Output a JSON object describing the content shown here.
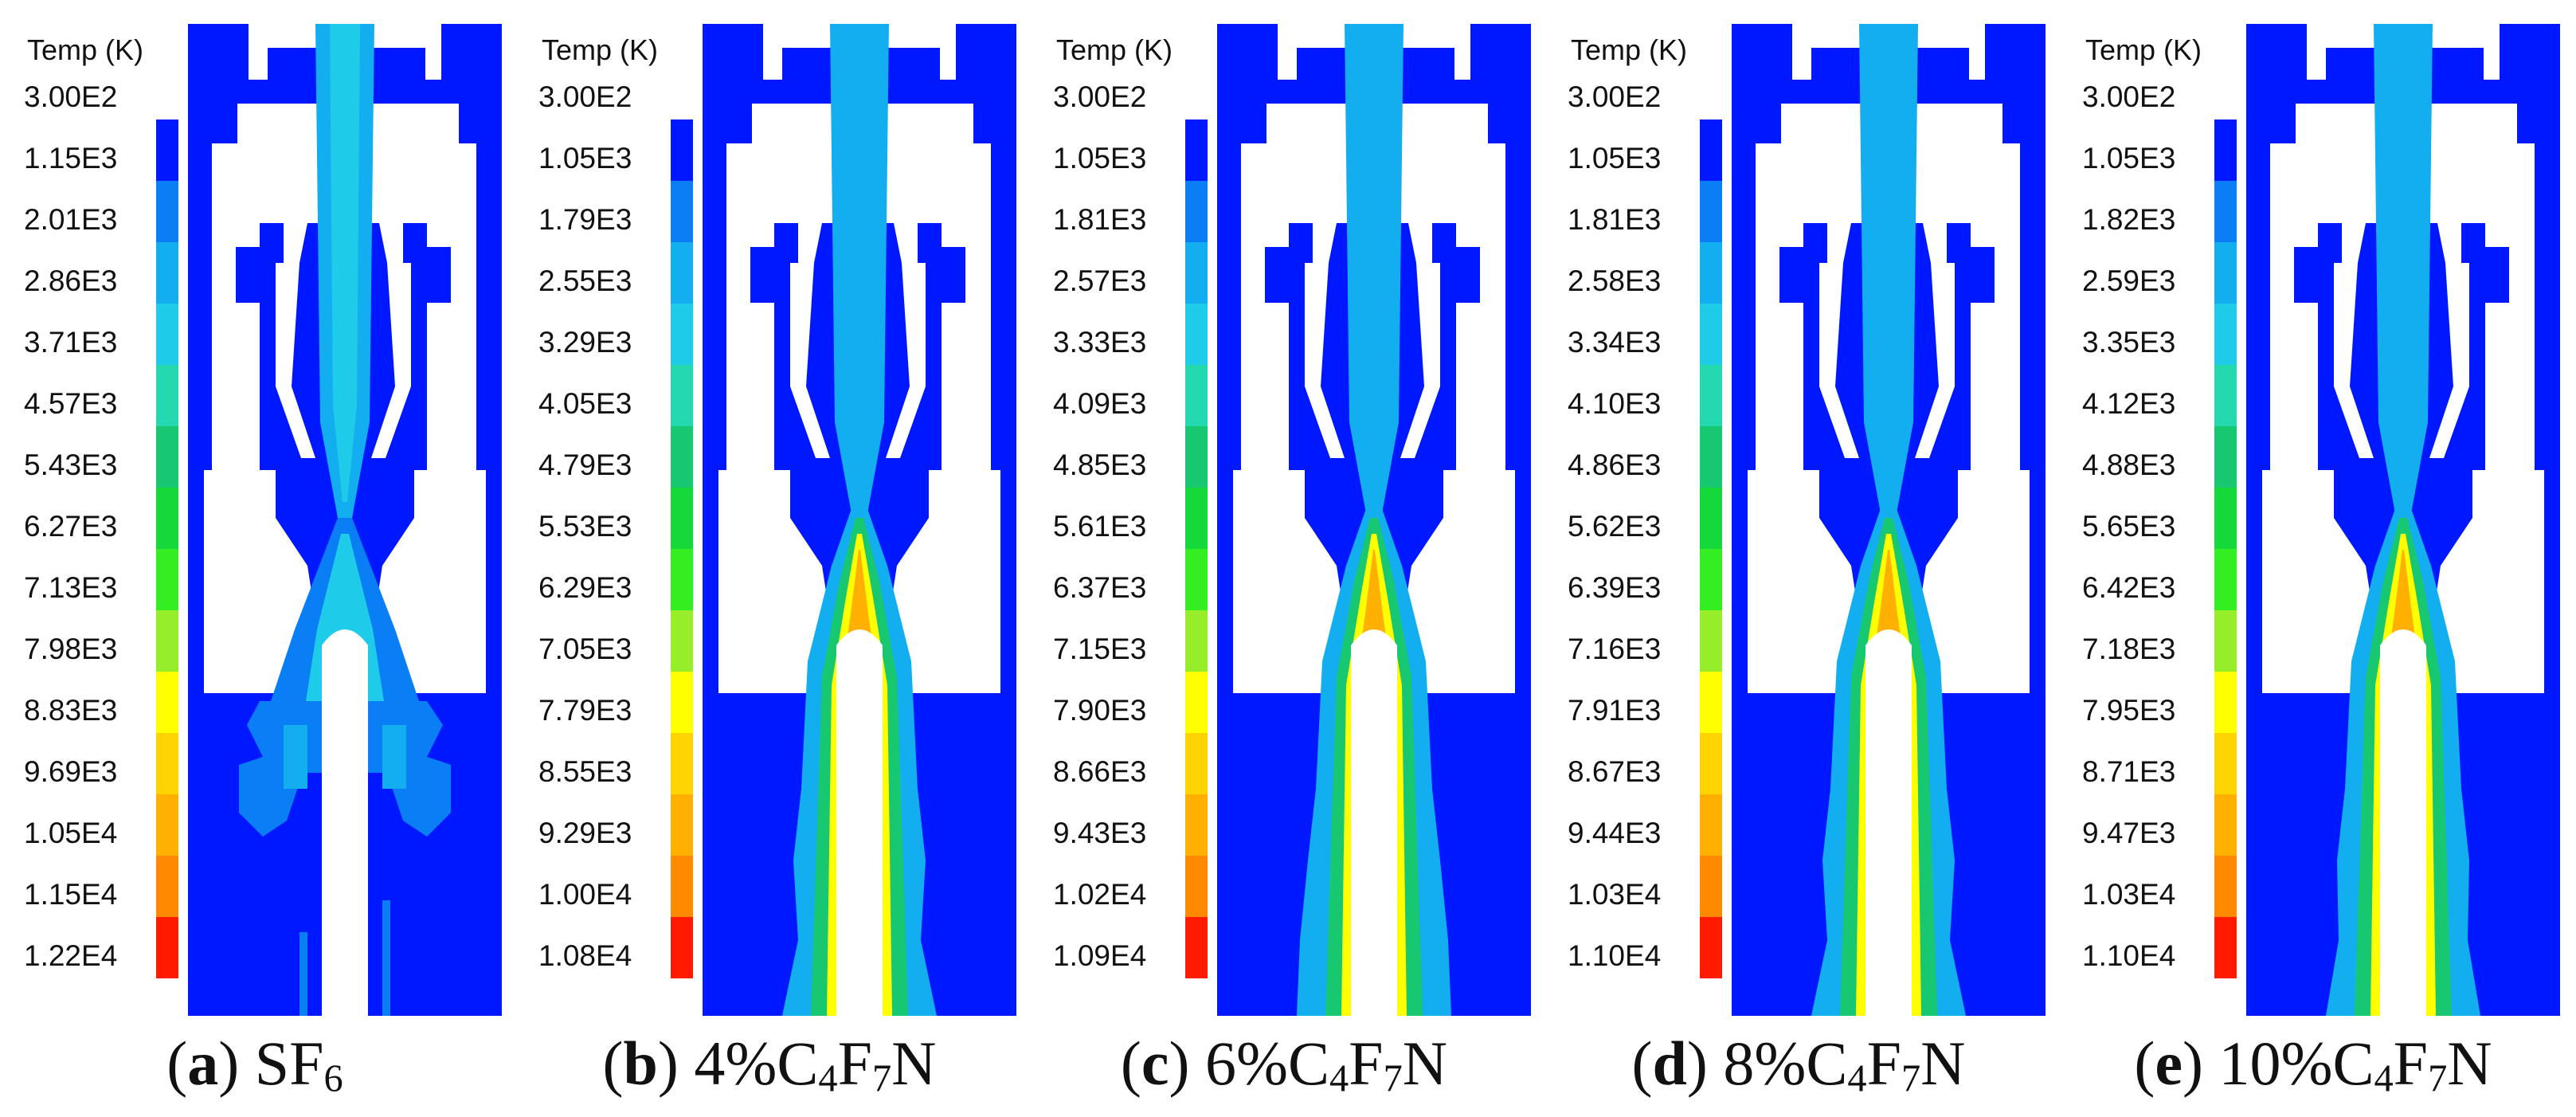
{
  "legend_title": "Temp (K)",
  "colorbar_colors": [
    "#0018ff",
    "#0a7ff5",
    "#12aef0",
    "#1ecbe8",
    "#24d8b0",
    "#18c870",
    "#15d83a",
    "#33ee20",
    "#96ee2a",
    "#ffff00",
    "#ffd400",
    "#ffb000",
    "#ff8a00",
    "#ff5a00",
    "#ff1a00"
  ],
  "panels": [
    {
      "letter": "a",
      "caption_text": "SF",
      "caption_sub": "6",
      "caption_tail": "",
      "ticks": [
        "3.00E2",
        "1.15E3",
        "2.01E3",
        "2.86E3",
        "3.71E3",
        "4.57E3",
        "5.43E3",
        "6.27E3",
        "7.13E3",
        "7.98E3",
        "8.83E3",
        "9.69E3",
        "1.05E4",
        "1.15E4",
        "1.22E4"
      ]
    },
    {
      "letter": "b",
      "caption_text": "4%C",
      "caption_sub": "4",
      "caption_tail": "F7N",
      "ticks": [
        "3.00E2",
        "1.05E3",
        "1.79E3",
        "2.55E3",
        "3.29E3",
        "4.05E3",
        "4.79E3",
        "5.53E3",
        "6.29E3",
        "7.05E3",
        "7.79E3",
        "8.55E3",
        "9.29E3",
        "1.00E4",
        "1.08E4"
      ]
    },
    {
      "letter": "c",
      "caption_text": "6%C",
      "caption_sub": "4",
      "caption_tail": "F7N",
      "ticks": [
        "3.00E2",
        "1.05E3",
        "1.81E3",
        "2.57E3",
        "3.33E3",
        "4.09E3",
        "4.85E3",
        "5.61E3",
        "6.37E3",
        "7.15E3",
        "7.90E3",
        "8.66E3",
        "9.43E3",
        "1.02E4",
        "1.09E4"
      ]
    },
    {
      "letter": "d",
      "caption_text": "8%C",
      "caption_sub": "4",
      "caption_tail": "F7N",
      "ticks": [
        "3.00E2",
        "1.05E3",
        "1.81E3",
        "2.58E3",
        "3.34E3",
        "4.10E3",
        "4.86E3",
        "5.62E3",
        "6.39E3",
        "7.16E3",
        "7.91E3",
        "8.67E3",
        "9.44E3",
        "1.03E4",
        "1.10E4"
      ]
    },
    {
      "letter": "e",
      "caption_text": "10%C",
      "caption_sub": "4",
      "caption_tail": "F7N",
      "ticks": [
        "3.00E2",
        "1.05E3",
        "1.82E3",
        "2.59E3",
        "3.35E3",
        "4.12E3",
        "4.88E3",
        "5.65E3",
        "6.42E3",
        "7.18E3",
        "7.95E3",
        "8.71E3",
        "9.47E3",
        "1.03E4",
        "1.10E4"
      ]
    }
  ]
}
